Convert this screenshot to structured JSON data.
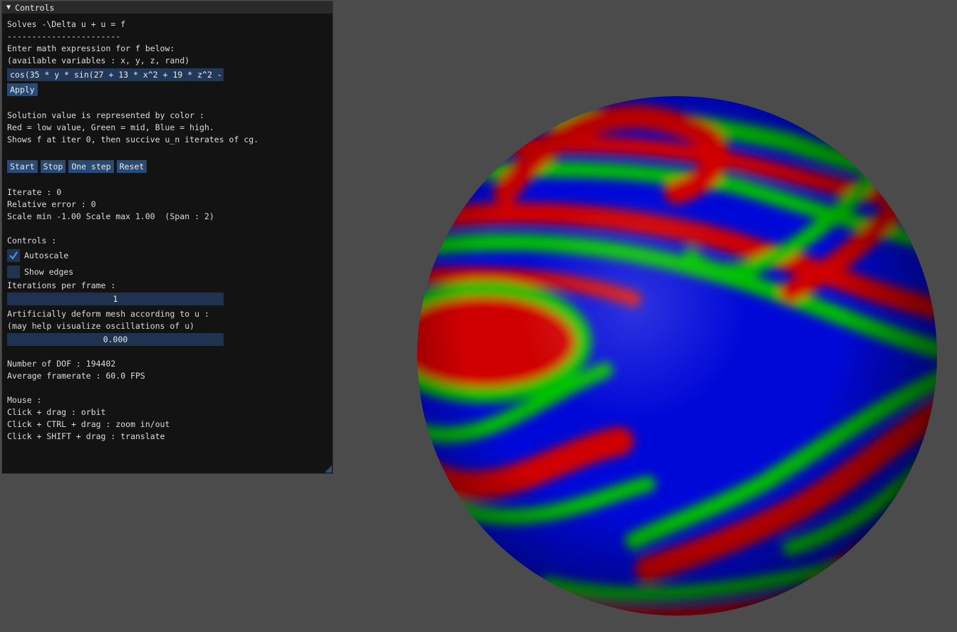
{
  "panel": {
    "title": "Controls",
    "solves": "Solves -\\Delta u + u = f",
    "separator": "-----------------------",
    "enter_expr": "Enter math expression for f below:",
    "available_vars": "(available variables : x, y, z, rand)",
    "expression": "cos(35 * y * sin(27 + 13 * x^2 + 19 * z^2 -",
    "apply_label": "Apply",
    "color_info_1": "Solution value is represented by color :",
    "color_info_2": "Red = low value, Green = mid, Blue = high.",
    "color_info_3": "Shows f at iter 0, then succive u_n iterates of cg.",
    "buttons": {
      "start": "Start",
      "stop": "Stop",
      "one_step": "One step",
      "reset": "Reset"
    },
    "iterate": "Iterate : 0",
    "relative_error": "Relative error : 0",
    "scale": "Scale min -1.00 Scale max 1.00  (Span : 2)",
    "controls_label": "Controls :",
    "autoscale": {
      "label": "Autoscale",
      "checked": true
    },
    "show_edges": {
      "label": "Show edges",
      "checked": false
    },
    "iterations_label": "Iterations per frame :",
    "iterations_value": "1",
    "deform_label_1": "Artificially deform mesh according to u :",
    "deform_label_2": "(may help visualize oscillations of u)",
    "deform_value": "0.000",
    "dof": "Number of DOF : 194402",
    "framerate": "Average framerate : 60.0 FPS",
    "mouse_label": "Mouse :",
    "mouse_orbit": "Click + drag : orbit",
    "mouse_zoom": "Click + CTRL + drag : zoom in/out",
    "mouse_translate": "Click + SHIFT + drag : translate"
  },
  "colors": {
    "background": "#4b4b4b",
    "panel_bg": "#131313",
    "accent": "#284a73",
    "check": "#4a90e2",
    "low": "#d00000",
    "mid": "#00d000",
    "high": "#0010e0"
  },
  "icons": {
    "collapse": "triangle-down-icon",
    "check": "checkmark-icon",
    "resize": "resize-grip-icon"
  }
}
